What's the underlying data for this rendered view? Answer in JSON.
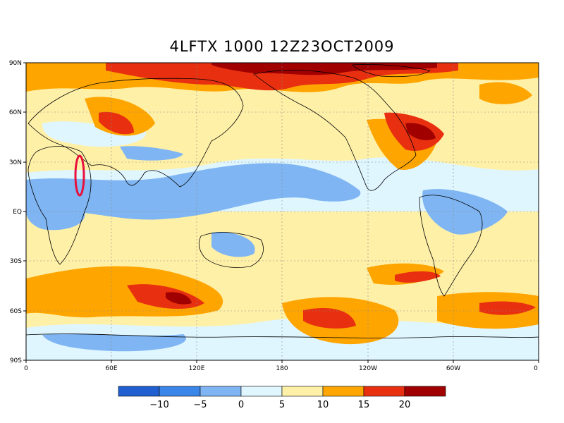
{
  "title": "4LFTX 1000 12Z23OCT2009",
  "lat_labels": [
    "90N",
    "60N",
    "30N",
    "EQ",
    "30S",
    "60S",
    "90S"
  ],
  "lon_labels": [
    "0",
    "60E",
    "120E",
    "180",
    "120W",
    "60W",
    "0"
  ],
  "colorbar": {
    "colors": [
      "#1f5fd0",
      "#3a86e8",
      "#7fb5f2",
      "#dff6ff",
      "#fff0a8",
      "#ffa500",
      "#e83010",
      "#a00000"
    ],
    "labels": [
      "−10",
      "−5",
      "0",
      "5",
      "10",
      "15",
      "20"
    ]
  },
  "colors": {
    "land_outline": "#000000",
    "ocean_base": "#fff0a8",
    "grid": "#888888",
    "highlight_ellipse": "#e8103c"
  }
}
